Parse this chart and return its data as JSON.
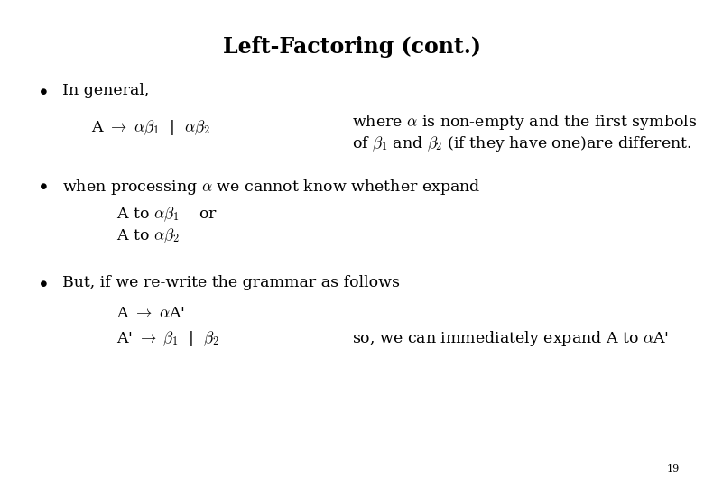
{
  "title": "Left-Factoring (cont.)",
  "background_color": "#ffffff",
  "text_color": "#000000",
  "fig_width": 7.8,
  "fig_height": 5.4,
  "dpi": 100,
  "title_fontsize": 17,
  "body_fontsize": 12.5,
  "page_number": "19"
}
